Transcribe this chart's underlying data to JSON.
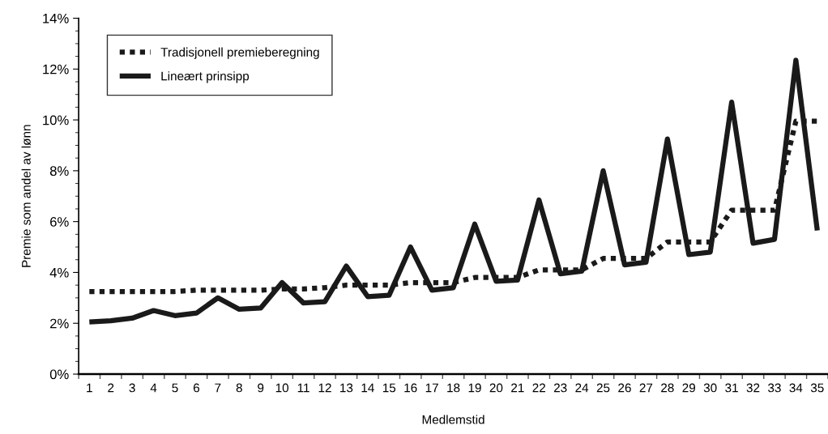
{
  "chart_data": {
    "type": "line",
    "xlabel": "Medlemstid",
    "ylabel": "Premie som andel av lønn",
    "categories": [
      "1",
      "2",
      "3",
      "4",
      "5",
      "6",
      "7",
      "8",
      "9",
      "10",
      "11",
      "12",
      "13",
      "14",
      "15",
      "16",
      "17",
      "18",
      "19",
      "20",
      "21",
      "22",
      "23",
      "24",
      "25",
      "26",
      "27",
      "28",
      "29",
      "30",
      "31",
      "32",
      "33",
      "34",
      "35"
    ],
    "series": [
      {
        "name": "Tradisjonell premieberegning",
        "color": "#1a1a1a",
        "line_style": "dotted",
        "values": [
          3.25,
          3.25,
          3.25,
          3.25,
          3.25,
          3.3,
          3.3,
          3.3,
          3.3,
          3.35,
          3.35,
          3.4,
          3.5,
          3.5,
          3.5,
          3.6,
          3.6,
          3.6,
          3.8,
          3.8,
          3.8,
          4.1,
          4.1,
          4.1,
          4.55,
          4.55,
          4.55,
          5.2,
          5.2,
          5.2,
          6.45,
          6.45,
          6.45,
          9.95,
          9.95
        ]
      },
      {
        "name": "Lineært prinsipp",
        "color": "#1a1a1a",
        "line_style": "solid",
        "values": [
          2.05,
          2.1,
          2.2,
          2.5,
          2.3,
          2.4,
          3.0,
          2.55,
          2.6,
          3.6,
          2.8,
          2.85,
          4.25,
          3.05,
          3.1,
          5.0,
          3.3,
          3.4,
          5.9,
          3.65,
          3.7,
          6.85,
          3.95,
          4.05,
          8.0,
          4.3,
          4.4,
          9.25,
          4.7,
          4.8,
          10.7,
          5.15,
          5.3,
          12.35,
          5.65
        ]
      }
    ],
    "ylim": [
      0,
      14
    ],
    "yticks": [
      {
        "value": 0,
        "label": "0%"
      },
      {
        "value": 2,
        "label": "2%"
      },
      {
        "value": 4,
        "label": "4%"
      },
      {
        "value": 6,
        "label": "6%"
      },
      {
        "value": 8,
        "label": "8%"
      },
      {
        "value": 10,
        "label": "10%"
      },
      {
        "value": 12,
        "label": "12%"
      },
      {
        "value": 14,
        "label": "14%"
      }
    ],
    "grid": false,
    "legend": "top left"
  }
}
